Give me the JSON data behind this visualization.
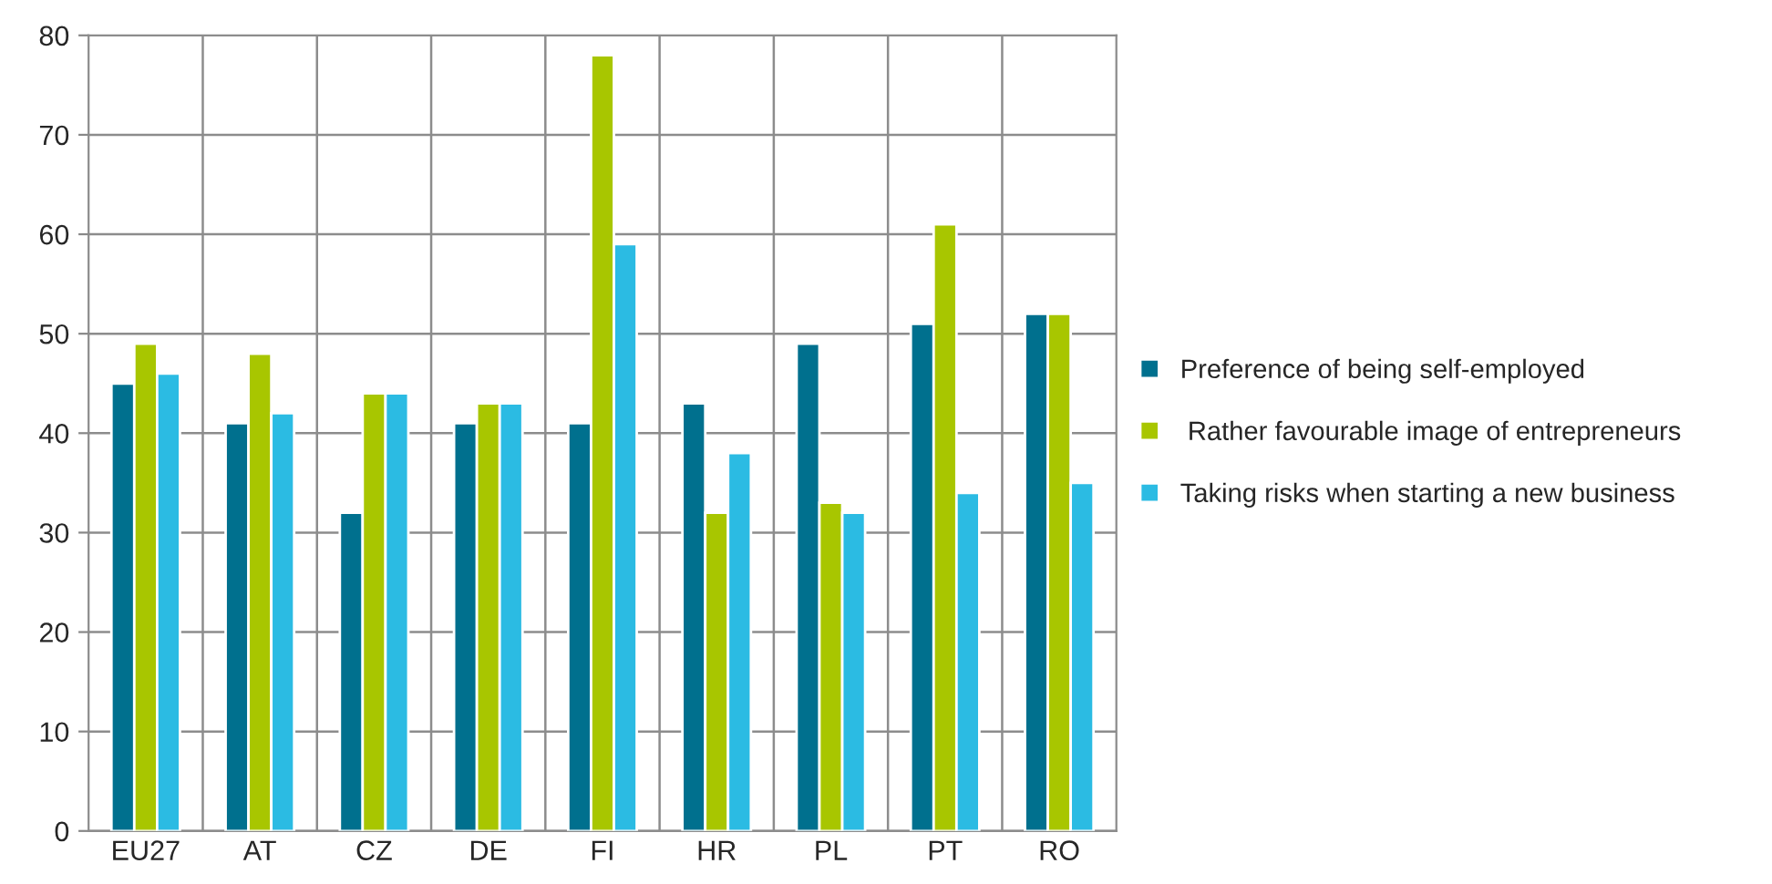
{
  "chart_data": {
    "type": "bar",
    "categories": [
      "EU27",
      "AT",
      "CZ",
      "DE",
      "FI",
      "HR",
      "PL",
      "PT",
      "RO"
    ],
    "series": [
      {
        "name": "Preference of being self-employed",
        "color": "#00708e",
        "values": [
          45,
          41,
          32,
          41,
          41,
          43,
          49,
          51,
          52
        ]
      },
      {
        "name": " Rather favourable image of entrepreneurs",
        "color": "#a8c600",
        "values": [
          49,
          48,
          44,
          43,
          78,
          32,
          33,
          61,
          52
        ]
      },
      {
        "name": "Taking risks when starting a new business",
        "color": "#2bbbe3",
        "values": [
          46,
          42,
          44,
          43,
          59,
          38,
          32,
          34,
          35
        ]
      }
    ],
    "ylim": [
      0,
      80
    ],
    "yticks": [
      0,
      10,
      20,
      30,
      40,
      50,
      60,
      70,
      80
    ],
    "grid": true,
    "legend": "right"
  }
}
